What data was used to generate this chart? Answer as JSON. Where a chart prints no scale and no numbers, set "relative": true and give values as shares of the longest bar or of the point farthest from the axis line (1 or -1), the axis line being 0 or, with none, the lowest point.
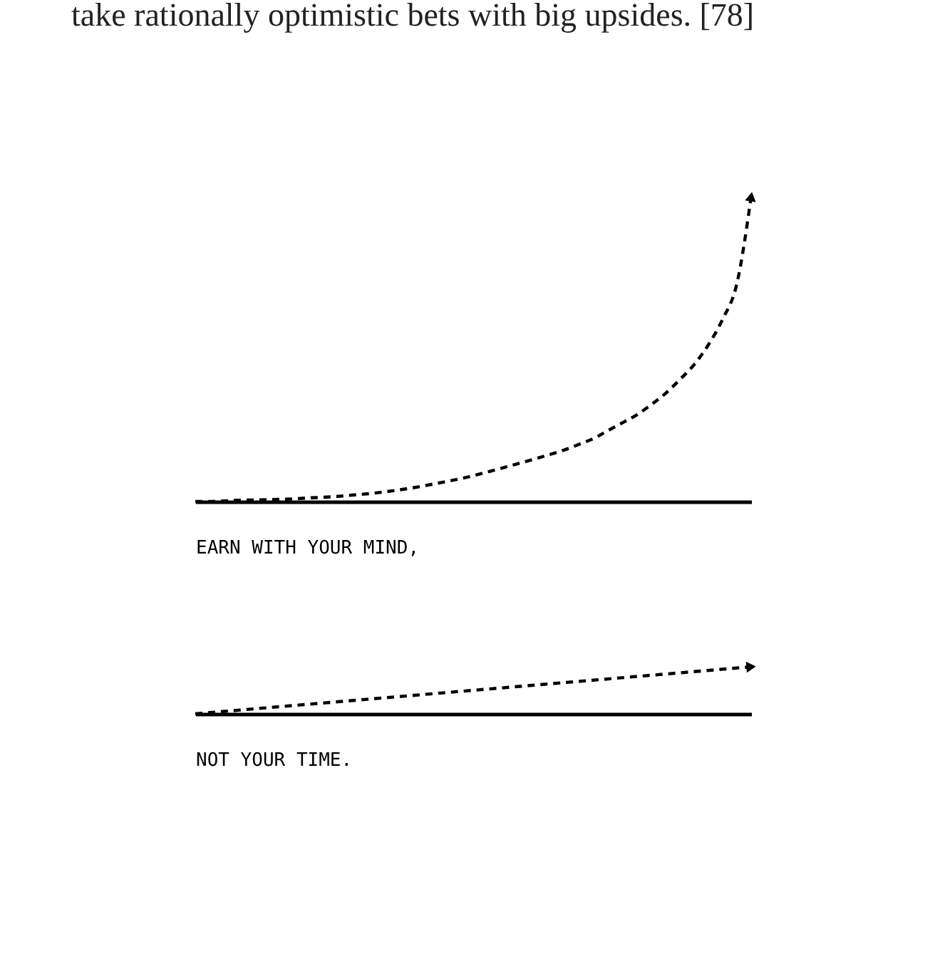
{
  "chart_data": [
    {
      "type": "line",
      "relative": true,
      "tick_labels": false,
      "line_style": "dashed",
      "annotations": [
        "take rationally optimistic bets with big upsides. [78]"
      ],
      "xlabel": "EARN WITH YOUR MIND,",
      "categories": [
        null,
        null,
        null,
        null,
        null,
        null,
        null,
        null,
        null,
        null,
        null,
        null,
        null,
        null,
        null,
        null,
        null,
        null,
        null,
        null,
        null,
        null,
        null,
        null,
        null,
        null,
        null,
        null,
        null,
        null,
        null,
        null,
        null,
        null,
        null,
        null,
        null,
        null,
        null,
        null
      ],
      "series": [
        {
          "color": "#000000",
          "values": [
            0,
            0,
            0.002,
            0.004,
            0.005,
            0.006,
            0.007,
            0.009,
            0.012,
            0.014,
            0.017,
            0.021,
            0.025,
            0.03,
            0.036,
            0.043,
            0.051,
            0.06,
            0.069,
            0.079,
            0.091,
            0.103,
            0.116,
            0.129,
            0.142,
            0.156,
            0.171,
            0.189,
            0.208,
            0.234,
            0.259,
            0.285,
            0.318,
            0.355,
            0.4,
            0.449,
            0.514,
            0.598,
            0.715,
            1.0
          ]
        }
      ]
    },
    {
      "type": "line",
      "relative": true,
      "tick_labels": false,
      "line_style": "dashed",
      "xlabel": "NOT YOUR TIME.",
      "categories": [
        null,
        null
      ],
      "series": [
        {
          "color": "#000000",
          "values": [
            0,
            1
          ]
        }
      ]
    }
  ]
}
